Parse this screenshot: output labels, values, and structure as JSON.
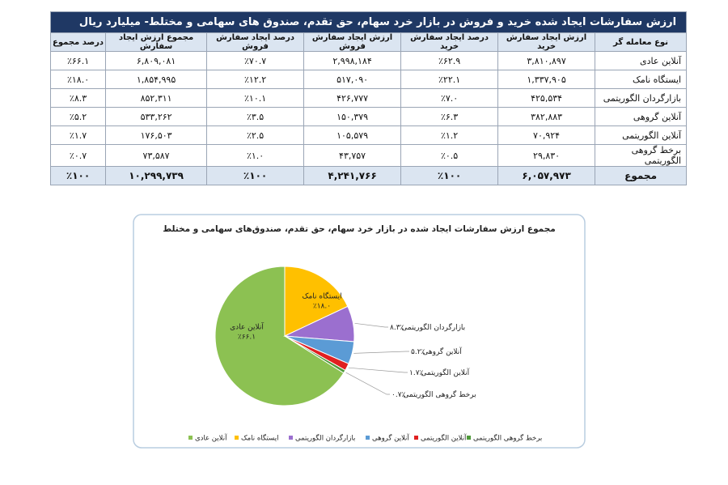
{
  "table": {
    "title": "ارزش سفارشات ایجاد شده خرید و فروش در بازار خرد سهام، حق تقدم، صندوق های سهامی و مختلط- میلیارد ریال",
    "headers": [
      "نوع معامله گر",
      "ارزش ایجاد سفارش خرید",
      "درصد ایجاد سفارش خرید",
      "ارزش ایجاد سفارش فروش",
      "درصد ایجاد سفارش فروش",
      "مجموع ارزش ایجاد سفارش",
      "درصد مجموع"
    ],
    "rows": [
      [
        "آنلاین عادی",
        "۳,۸۱۰,۸۹۷",
        "٪۶۲.۹",
        "۲,۹۹۸,۱۸۴",
        "٪۷۰.۷",
        "۶,۸۰۹,۰۸۱",
        "٪۶۶.۱"
      ],
      [
        "ایستگاه نامک",
        "۱,۳۳۷,۹۰۵",
        "٪۲۲.۱",
        "۵۱۷,۰۹۰",
        "٪۱۲.۲",
        "۱,۸۵۴,۹۹۵",
        "٪۱۸.۰"
      ],
      [
        "بازارگردان الگوریتمی",
        "۴۲۵,۵۳۴",
        "٪۷.۰",
        "۴۲۶,۷۷۷",
        "٪۱۰.۱",
        "۸۵۲,۳۱۱",
        "٪۸.۳"
      ],
      [
        "آنلاین گروهی",
        "۳۸۲,۸۸۳",
        "٪۶.۳",
        "۱۵۰,۳۷۹",
        "٪۳.۵",
        "۵۳۳,۲۶۲",
        "٪۵.۲"
      ],
      [
        "آنلاین الگوریتمی",
        "۷۰,۹۲۴",
        "٪۱.۲",
        "۱۰۵,۵۷۹",
        "٪۲.۵",
        "۱۷۶,۵۰۳",
        "٪۱.۷"
      ],
      [
        "برخط گروهی الگوریتمی",
        "۲۹,۸۳۰",
        "٪۰.۵",
        "۴۳,۷۵۷",
        "٪۱.۰",
        "۷۳,۵۸۷",
        "٪۰.۷"
      ]
    ],
    "total": [
      "مجموع",
      "۶,۰۵۷,۹۷۳",
      "٪۱۰۰",
      "۴,۲۴۱,۷۶۶",
      "٪۱۰۰",
      "۱۰,۲۹۹,۷۳۹",
      "٪۱۰۰"
    ]
  },
  "chart_data": {
    "type": "pie",
    "title": "مجموع ارزش سفارشات ایجاد شده در بازار خرد سهام، حق تقدم، صندوق‌های سهامی و مختلط",
    "categories": [
      "آنلاین عادی",
      "ایستگاه نامک",
      "بازارگردان الگوریتمی",
      "آنلاین گروهی",
      "آنلاین الگوریتمی",
      "برخط گروهی الگوریتمی"
    ],
    "values": [
      66.1,
      18.0,
      8.3,
      5.2,
      1.7,
      0.7
    ],
    "value_labels": [
      "٪۶۶.۱",
      "٪۱۸.۰",
      "٪۸.۳",
      "٪۵.۲",
      "٪۱.۷",
      "٪۰.۷"
    ],
    "colors": [
      "#8cc152",
      "#ffc000",
      "#9b6fcf",
      "#5b9bd5",
      "#e02020",
      "#4e9a3a"
    ]
  }
}
